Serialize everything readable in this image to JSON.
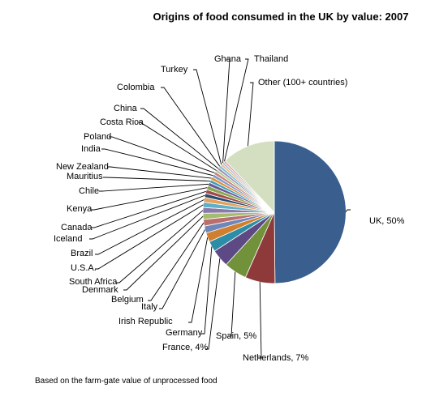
{
  "chart_data": {
    "type": "pie",
    "title": "Origins of food consumed in the UK by value: 2007",
    "footnote": "Based on the farm-gate value of unprocessed food",
    "slices": [
      {
        "name": "UK",
        "label": "UK, 50%",
        "value": 50.0,
        "color": "#3A5F8F"
      },
      {
        "name": "Netherlands",
        "label": "Netherlands, 7%",
        "value": 6.8,
        "color": "#8E3A3A"
      },
      {
        "name": "Spain",
        "label": "Spain, 5%",
        "value": 5.2,
        "color": "#71913B"
      },
      {
        "name": "France",
        "label": "France, 4%",
        "value": 4.0,
        "color": "#5D4A85"
      },
      {
        "name": "Germany",
        "label": "Germany",
        "value": 2.4,
        "color": "#2E8DA6"
      },
      {
        "name": "Irish Republic",
        "label": "Irish Republic",
        "value": 2.1,
        "color": "#D07F2E"
      },
      {
        "name": "Italy",
        "label": "Italy",
        "value": 1.6,
        "color": "#6F87B8"
      },
      {
        "name": "Belgium",
        "label": "Belgium",
        "value": 1.5,
        "color": "#BB6E6D"
      },
      {
        "name": "Denmark",
        "label": "Denmark",
        "value": 1.4,
        "color": "#A3BC6D"
      },
      {
        "name": "South Africa",
        "label": "South Africa",
        "value": 1.3,
        "color": "#8A78A8"
      },
      {
        "name": "U.S.A.",
        "label": "U.S.A.",
        "value": 1.2,
        "color": "#5FB0C7"
      },
      {
        "name": "Brazil",
        "label": "Brazil",
        "value": 1.1,
        "color": "#E3A15C"
      },
      {
        "name": "Iceland",
        "label": "Iceland",
        "value": 0.9,
        "color": "#294B70"
      },
      {
        "name": "Canada",
        "label": "Canada",
        "value": 0.9,
        "color": "#A24A4A"
      },
      {
        "name": "Kenya",
        "label": "Kenya",
        "value": 0.9,
        "color": "#86A84F"
      },
      {
        "name": "Chile",
        "label": "Chile",
        "value": 0.8,
        "color": "#6B5996"
      },
      {
        "name": "Mauritius",
        "label": "Mauritius",
        "value": 0.7,
        "color": "#3BA1BA"
      },
      {
        "name": "New Zealand",
        "label": "New Zealand",
        "value": 0.7,
        "color": "#E08F40"
      },
      {
        "name": "India",
        "label": "India",
        "value": 0.7,
        "color": "#7E9AC6"
      },
      {
        "name": "Poland",
        "label": "Poland",
        "value": 0.7,
        "color": "#C98583"
      },
      {
        "name": "Costa Rica",
        "label": "Costa Rica",
        "value": 0.6,
        "color": "#B5CC8A"
      },
      {
        "name": "China",
        "label": "China",
        "value": 0.6,
        "color": "#9E8FBC"
      },
      {
        "name": "Colombia",
        "label": "Colombia",
        "value": 0.6,
        "color": "#7EC1D6"
      },
      {
        "name": "Turkey",
        "label": "Turkey",
        "value": 0.5,
        "color": "#F0B77E"
      },
      {
        "name": "Ghana",
        "label": "Ghana",
        "value": 0.5,
        "color": "#A9C1E0"
      },
      {
        "name": "Thailand",
        "label": "Thailand",
        "value": 0.5,
        "color": "#E0A9A8"
      },
      {
        "name": "Other (100+ countries)",
        "label": "Other (100+ countries)",
        "value": 12.1,
        "color": "#D3DFC0"
      }
    ]
  }
}
